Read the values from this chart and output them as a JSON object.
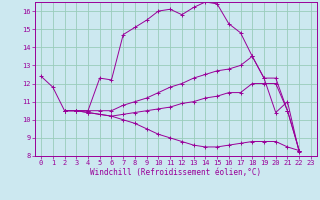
{
  "xlabel": "Windchill (Refroidissement éolien,°C)",
  "bg_color": "#cce8f0",
  "line_color": "#990099",
  "grid_color": "#99ccbb",
  "xlim": [
    -0.5,
    23.5
  ],
  "ylim": [
    8,
    16.5
  ],
  "xticks": [
    0,
    1,
    2,
    3,
    4,
    5,
    6,
    7,
    8,
    9,
    10,
    11,
    12,
    13,
    14,
    15,
    16,
    17,
    18,
    19,
    20,
    21,
    22,
    23
  ],
  "yticks": [
    8,
    9,
    10,
    11,
    12,
    13,
    14,
    15,
    16
  ],
  "series": [
    {
      "x": [
        0,
        1,
        2,
        3,
        4,
        5,
        6,
        7,
        8,
        9,
        10,
        11,
        12,
        13,
        14,
        15,
        16,
        17,
        18,
        19,
        20,
        21,
        22
      ],
      "y": [
        12.4,
        11.8,
        10.5,
        10.5,
        10.5,
        12.3,
        12.2,
        14.7,
        15.1,
        15.5,
        16.0,
        16.1,
        15.8,
        16.2,
        16.5,
        16.4,
        15.3,
        14.8,
        13.5,
        12.3,
        10.4,
        11.0,
        8.2
      ]
    },
    {
      "x": [
        2,
        3,
        4,
        5,
        6,
        7,
        8,
        9,
        10,
        11,
        12,
        13,
        14,
        15,
        16,
        17,
        18,
        19,
        20,
        21,
        22
      ],
      "y": [
        10.5,
        10.5,
        10.5,
        10.5,
        10.5,
        10.8,
        11.0,
        11.2,
        11.5,
        11.8,
        12.0,
        12.3,
        12.5,
        12.7,
        12.8,
        13.0,
        13.5,
        12.3,
        12.3,
        10.5,
        8.3
      ]
    },
    {
      "x": [
        2,
        3,
        4,
        5,
        6,
        7,
        8,
        9,
        10,
        11,
        12,
        13,
        14,
        15,
        16,
        17,
        18,
        19,
        20,
        21,
        22
      ],
      "y": [
        10.5,
        10.5,
        10.4,
        10.3,
        10.2,
        10.3,
        10.4,
        10.5,
        10.6,
        10.7,
        10.9,
        11.0,
        11.2,
        11.3,
        11.5,
        11.5,
        12.0,
        12.0,
        12.0,
        10.5,
        8.3
      ]
    },
    {
      "x": [
        2,
        3,
        4,
        5,
        6,
        7,
        8,
        9,
        10,
        11,
        12,
        13,
        14,
        15,
        16,
        17,
        18,
        19,
        20,
        21,
        22
      ],
      "y": [
        10.5,
        10.5,
        10.4,
        10.3,
        10.2,
        10.0,
        9.8,
        9.5,
        9.2,
        9.0,
        8.8,
        8.6,
        8.5,
        8.5,
        8.6,
        8.7,
        8.8,
        8.8,
        8.8,
        8.5,
        8.3
      ]
    }
  ]
}
